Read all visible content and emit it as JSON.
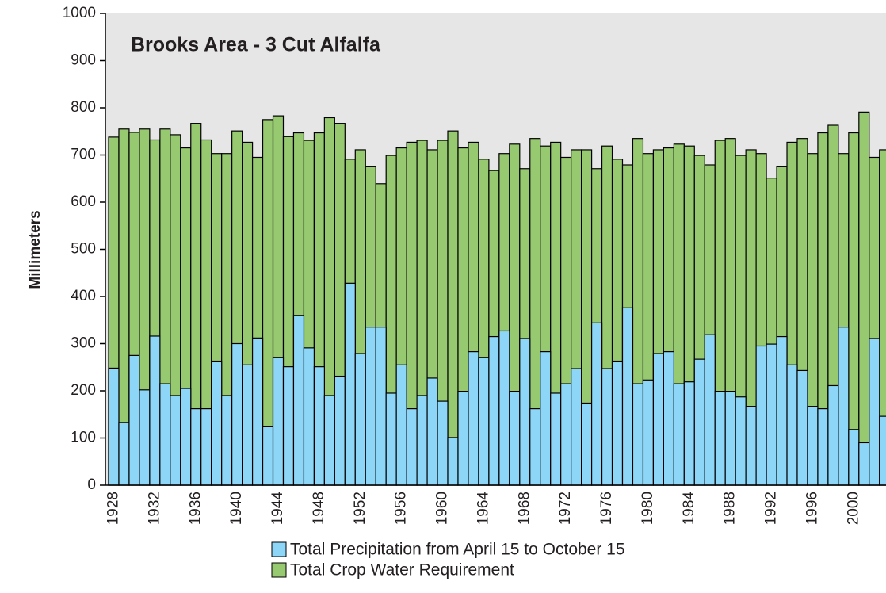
{
  "chart_data": {
    "type": "bar",
    "barmode": "overlay",
    "title": "Brooks Area - 3 Cut Alfalfa",
    "y_label": "Millimeters",
    "categories": [
      "1928",
      null,
      null,
      null,
      "1932",
      null,
      null,
      null,
      "1936",
      null,
      null,
      null,
      "1940",
      null,
      null,
      null,
      "1944",
      null,
      null,
      null,
      "1948",
      null,
      null,
      null,
      "1952",
      null,
      null,
      null,
      "1956",
      null,
      null,
      null,
      "1960",
      null,
      null,
      null,
      "1964",
      null,
      null,
      null,
      "1968",
      null,
      null,
      null,
      "1972",
      null,
      null,
      null,
      "1976",
      null,
      null,
      null,
      "1980",
      null,
      null,
      null,
      "1984",
      null,
      null,
      null,
      "1988",
      null,
      null,
      null,
      "1992",
      null,
      null,
      null,
      "1996",
      null,
      null,
      null,
      "2000",
      null,
      null,
      null
    ],
    "series": [
      {
        "name": "Total Crop Water Requirement",
        "color": "#97c971",
        "values": [
          738,
          755,
          748,
          755,
          732,
          755,
          743,
          715,
          767,
          732,
          703,
          703,
          751,
          727,
          695,
          775,
          783,
          739,
          747,
          731,
          747,
          779,
          767,
          691,
          711,
          675,
          639,
          699,
          715,
          727,
          731,
          711,
          731,
          751,
          715,
          727,
          691,
          667,
          703,
          723,
          671,
          735,
          719,
          727,
          695,
          711,
          711,
          671,
          719,
          691,
          679,
          735,
          703,
          711,
          715,
          723,
          719,
          699,
          679,
          731,
          735,
          699,
          711,
          703,
          651,
          675,
          727,
          735,
          703,
          747,
          763,
          703,
          747,
          791,
          695,
          711
        ]
      },
      {
        "name": "Total Precipitation from April 15 to October 15",
        "color": "#8dd6f7",
        "values": [
          248,
          133,
          275,
          202,
          316,
          215,
          190,
          205,
          162,
          162,
          263,
          190,
          300,
          255,
          312,
          125,
          271,
          251,
          360,
          291,
          251,
          190,
          231,
          428,
          279,
          335,
          335,
          195,
          255,
          162,
          190,
          227,
          178,
          101,
          199,
          283,
          271,
          315,
          327,
          199,
          311,
          162,
          283,
          195,
          215,
          247,
          174,
          344,
          247,
          263,
          376,
          215,
          223,
          279,
          283,
          215,
          219,
          267,
          319,
          199,
          199,
          187,
          167,
          295,
          299,
          315,
          255,
          243,
          167,
          162,
          211,
          335,
          118,
          90,
          311,
          146
        ]
      }
    ],
    "legend_order": [
      1,
      0
    ],
    "ylim": [
      0,
      1000
    ],
    "yticks": [
      0,
      100,
      200,
      300,
      400,
      500,
      600,
      700,
      800,
      900,
      1000
    ],
    "grid": false
  }
}
